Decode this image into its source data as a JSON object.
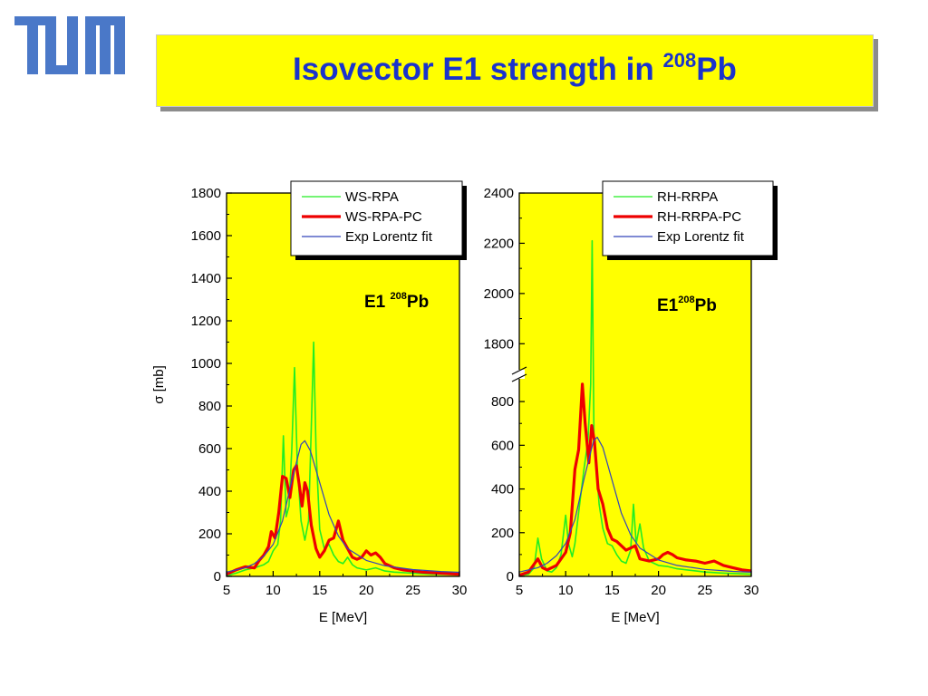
{
  "logo": {
    "text": "TUM",
    "color": "#4a78c8"
  },
  "title": {
    "main": "Isovector E1 strength in ",
    "sup": "208",
    "tail": "Pb",
    "color": "#1a33cc"
  },
  "colors": {
    "plot_bg": "#ffff00",
    "ws_rpa": "#22ee22",
    "pc": "#ee0000",
    "lorentz": "#3344bb"
  },
  "chart_data": [
    {
      "type": "line",
      "title": "",
      "annotation": {
        "label": "E1 ",
        "sup": "208",
        "tail": "Pb"
      },
      "xlabel": "E [MeV]",
      "ylabel": "σ [mb]",
      "xlim": [
        5,
        30
      ],
      "ylim": [
        0,
        1800
      ],
      "x_ticks": [
        5,
        10,
        15,
        20,
        25,
        30
      ],
      "y_ticks": [
        0,
        200,
        400,
        600,
        800,
        1000,
        1200,
        1400,
        1600,
        1800
      ],
      "legend_position": "top-right",
      "series": [
        {
          "name": "WS-RPA",
          "color": "#22ee22",
          "points": [
            [
              5,
              3
            ],
            [
              6,
              15
            ],
            [
              7,
              30
            ],
            [
              8,
              40
            ],
            [
              9,
              55
            ],
            [
              9.5,
              70
            ],
            [
              10,
              120
            ],
            [
              10.5,
              150
            ],
            [
              10.8,
              260
            ],
            [
              11.1,
              660
            ],
            [
              11.4,
              280
            ],
            [
              11.7,
              330
            ],
            [
              12,
              600
            ],
            [
              12.3,
              980
            ],
            [
              12.6,
              520
            ],
            [
              13,
              260
            ],
            [
              13.4,
              170
            ],
            [
              13.8,
              260
            ],
            [
              14.1,
              700
            ],
            [
              14.35,
              1100
            ],
            [
              14.6,
              600
            ],
            [
              15,
              220
            ],
            [
              15.5,
              130
            ],
            [
              16,
              150
            ],
            [
              16.5,
              100
            ],
            [
              17,
              70
            ],
            [
              17.5,
              60
            ],
            [
              18,
              90
            ],
            [
              18.5,
              55
            ],
            [
              19,
              40
            ],
            [
              20,
              30
            ],
            [
              21,
              40
            ],
            [
              22,
              25
            ],
            [
              23,
              20
            ],
            [
              25,
              15
            ],
            [
              27,
              10
            ],
            [
              30,
              8
            ]
          ]
        },
        {
          "name": "WS-RPA-PC",
          "color": "#ee0000",
          "points": [
            [
              5,
              10
            ],
            [
              6,
              30
            ],
            [
              7,
              45
            ],
            [
              8,
              40
            ],
            [
              8.5,
              75
            ],
            [
              9,
              100
            ],
            [
              9.5,
              140
            ],
            [
              9.8,
              210
            ],
            [
              10.2,
              180
            ],
            [
              10.6,
              300
            ],
            [
              11,
              470
            ],
            [
              11.4,
              460
            ],
            [
              11.8,
              370
            ],
            [
              12.2,
              500
            ],
            [
              12.5,
              520
            ],
            [
              12.8,
              430
            ],
            [
              13.1,
              330
            ],
            [
              13.4,
              440
            ],
            [
              13.7,
              400
            ],
            [
              14.1,
              240
            ],
            [
              14.6,
              130
            ],
            [
              15,
              90
            ],
            [
              15.5,
              120
            ],
            [
              16,
              170
            ],
            [
              16.5,
              180
            ],
            [
              17,
              260
            ],
            [
              17.5,
              170
            ],
            [
              18,
              130
            ],
            [
              18.5,
              90
            ],
            [
              19,
              80
            ],
            [
              19.5,
              90
            ],
            [
              20,
              120
            ],
            [
              20.5,
              100
            ],
            [
              21,
              110
            ],
            [
              21.5,
              90
            ],
            [
              22,
              60
            ],
            [
              23,
              40
            ],
            [
              24,
              30
            ],
            [
              26,
              20
            ],
            [
              28,
              15
            ],
            [
              30,
              10
            ]
          ]
        },
        {
          "name": "Exp Lorentz fit",
          "color": "#3344bb",
          "points": [
            [
              5,
              20
            ],
            [
              7,
              40
            ],
            [
              8,
              60
            ],
            [
              9,
              95
            ],
            [
              10,
              150
            ],
            [
              11,
              260
            ],
            [
              12,
              450
            ],
            [
              13,
              620
            ],
            [
              13.4,
              637
            ],
            [
              14,
              590
            ],
            [
              15,
              440
            ],
            [
              16,
              290
            ],
            [
              17,
              190
            ],
            [
              18,
              130
            ],
            [
              20,
              75
            ],
            [
              22,
              50
            ],
            [
              25,
              32
            ],
            [
              28,
              23
            ],
            [
              30,
              19
            ]
          ]
        }
      ]
    },
    {
      "type": "line",
      "title": "",
      "annotation": {
        "label": "E1",
        "sup": "208",
        "tail": "Pb"
      },
      "xlabel": "E [MeV]",
      "ylabel": "",
      "xlim": [
        5,
        30
      ],
      "ylim": [
        0,
        2400
      ],
      "axis_break": [
        900,
        1700
      ],
      "x_ticks": [
        5,
        10,
        15,
        20,
        25,
        30
      ],
      "y_ticks": [
        0,
        200,
        400,
        600,
        800,
        1800,
        2000,
        2200,
        2400
      ],
      "legend_position": "top-right",
      "series": [
        {
          "name": "RH-RRPA",
          "color": "#22ee22",
          "points": [
            [
              5,
              3
            ],
            [
              6,
              10
            ],
            [
              6.6,
              40
            ],
            [
              7,
              175
            ],
            [
              7.4,
              80
            ],
            [
              8,
              25
            ],
            [
              8.5,
              20
            ],
            [
              9,
              40
            ],
            [
              9.5,
              100
            ],
            [
              10,
              280
            ],
            [
              10.3,
              150
            ],
            [
              10.7,
              90
            ],
            [
              11,
              150
            ],
            [
              11.5,
              330
            ],
            [
              12,
              500
            ],
            [
              12.4,
              620
            ],
            [
              12.7,
              880
            ],
            [
              12.85,
              2210
            ],
            [
              13.05,
              640
            ],
            [
              13.3,
              500
            ],
            [
              13.6,
              330
            ],
            [
              14,
              220
            ],
            [
              14.5,
              150
            ],
            [
              15,
              140
            ],
            [
              15.5,
              100
            ],
            [
              16,
              70
            ],
            [
              16.5,
              60
            ],
            [
              17,
              120
            ],
            [
              17.3,
              330
            ],
            [
              17.6,
              150
            ],
            [
              18,
              240
            ],
            [
              18.4,
              130
            ],
            [
              19,
              70
            ],
            [
              20,
              50
            ],
            [
              21,
              45
            ],
            [
              22,
              35
            ],
            [
              23,
              30
            ],
            [
              25,
              20
            ],
            [
              27,
              15
            ],
            [
              30,
              10
            ]
          ]
        },
        {
          "name": "RH-RRPA-PC",
          "color": "#ee0000",
          "points": [
            [
              5,
              5
            ],
            [
              6,
              20
            ],
            [
              6.5,
              50
            ],
            [
              7,
              80
            ],
            [
              7.5,
              40
            ],
            [
              8,
              30
            ],
            [
              9,
              50
            ],
            [
              9.5,
              80
            ],
            [
              10,
              110
            ],
            [
              10.5,
              200
            ],
            [
              11,
              490
            ],
            [
              11.4,
              580
            ],
            [
              11.8,
              880
            ],
            [
              12.1,
              700
            ],
            [
              12.5,
              520
            ],
            [
              12.8,
              690
            ],
            [
              13.1,
              620
            ],
            [
              13.5,
              400
            ],
            [
              14,
              330
            ],
            [
              14.5,
              220
            ],
            [
              15,
              170
            ],
            [
              15.5,
              160
            ],
            [
              16,
              140
            ],
            [
              16.5,
              120
            ],
            [
              17,
              130
            ],
            [
              17.5,
              140
            ],
            [
              18,
              80
            ],
            [
              19,
              70
            ],
            [
              20,
              80
            ],
            [
              20.5,
              100
            ],
            [
              21,
              110
            ],
            [
              21.5,
              100
            ],
            [
              22,
              85
            ],
            [
              23,
              75
            ],
            [
              24,
              70
            ],
            [
              25,
              60
            ],
            [
              26,
              70
            ],
            [
              27,
              50
            ],
            [
              28,
              40
            ],
            [
              29,
              30
            ],
            [
              30,
              25
            ]
          ]
        },
        {
          "name": "Exp Lorentz fit",
          "color": "#3344bb",
          "points": [
            [
              5,
              20
            ],
            [
              7,
              40
            ],
            [
              8,
              60
            ],
            [
              9,
              95
            ],
            [
              10,
              150
            ],
            [
              11,
              260
            ],
            [
              12,
              450
            ],
            [
              13,
              620
            ],
            [
              13.4,
              637
            ],
            [
              14,
              590
            ],
            [
              15,
              440
            ],
            [
              16,
              290
            ],
            [
              17,
              190
            ],
            [
              18,
              130
            ],
            [
              20,
              75
            ],
            [
              22,
              50
            ],
            [
              25,
              32
            ],
            [
              28,
              23
            ],
            [
              30,
              19
            ]
          ]
        }
      ]
    }
  ]
}
